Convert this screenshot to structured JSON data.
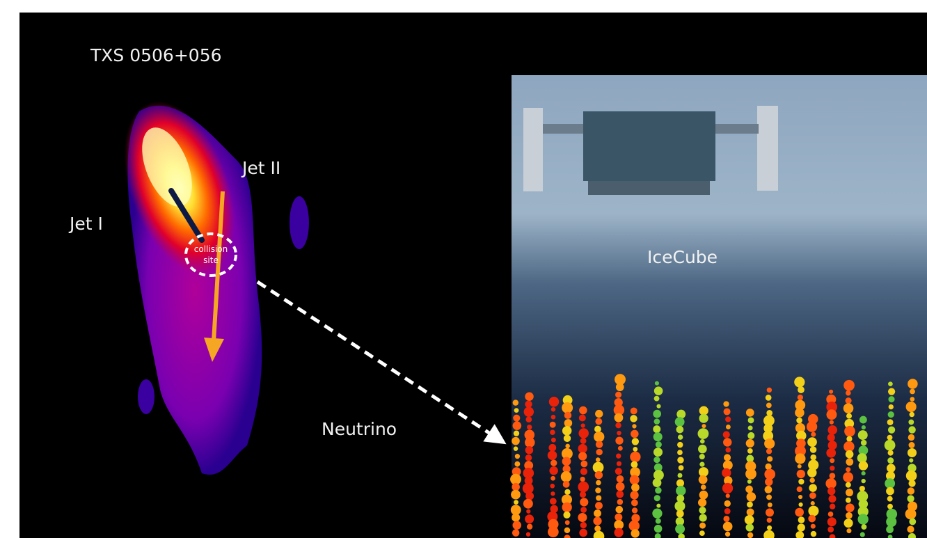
{
  "source": {
    "title": "TXS 0506+056",
    "jet_1": "Jet I",
    "jet_2": "Jet II",
    "collision_site": [
      "collision",
      "site"
    ]
  },
  "particle": "Neutrino",
  "detector": {
    "label": "IceCube"
  }
}
